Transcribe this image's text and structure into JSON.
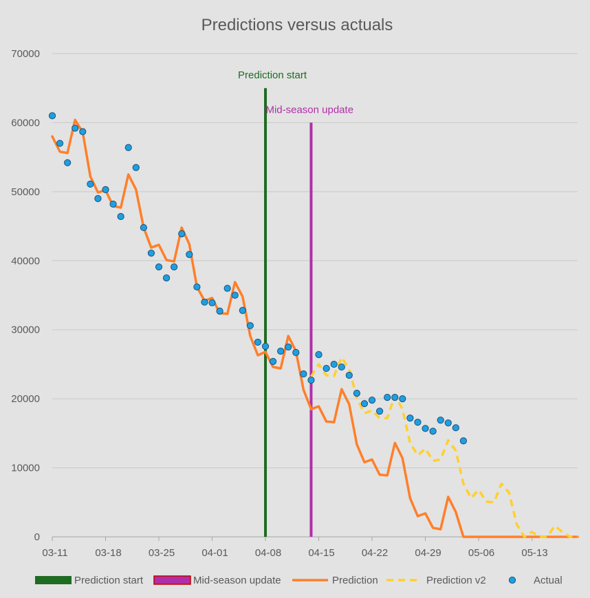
{
  "chart_data": {
    "type": "line",
    "title": "Predictions versus actuals",
    "xlabel": "",
    "ylabel": "",
    "x_axis": {
      "kind": "date",
      "range": [
        "03-11",
        "05-19"
      ],
      "tick_labels": [
        "03-11",
        "03-18",
        "03-25",
        "04-01",
        "04-08",
        "04-15",
        "04-22",
        "04-29",
        "05-06",
        "05-13"
      ]
    },
    "ylim": [
      0,
      70000
    ],
    "yticks": [
      "0",
      "10000",
      "20000",
      "30000",
      "40000",
      "50000",
      "60000",
      "70000"
    ],
    "grid": "horizontal",
    "legend_position": "bottom",
    "colors": {
      "prediction_start": "#1e6b22",
      "mid_season_update": "#b02fa8",
      "prediction": "#ff7f2a",
      "prediction_v2": "#ffd02e",
      "actual_fill": "#1ea0e0",
      "actual_edge": "#1f4e79",
      "grid": "#c9c9c9",
      "axis": "#a6a6a6",
      "text": "#595959"
    },
    "vertical_markers": [
      {
        "name": "Prediction start",
        "x": "04-08",
        "y_top": 65000,
        "color": "#1e6b22"
      },
      {
        "name": "Mid-season update",
        "x": "04-14",
        "y_top": 60000,
        "color": "#b02fa8"
      }
    ],
    "series": [
      {
        "name": "Prediction",
        "style": "solid",
        "color": "#ff7f2a",
        "points": [
          [
            "03-11",
            58000
          ],
          [
            "03-12",
            55800
          ],
          [
            "03-13",
            55600
          ],
          [
            "03-14",
            60400
          ],
          [
            "03-15",
            58600
          ],
          [
            "03-16",
            52200
          ],
          [
            "03-17",
            49900
          ],
          [
            "03-18",
            50200
          ],
          [
            "03-19",
            47900
          ],
          [
            "03-20",
            47700
          ],
          [
            "03-21",
            52500
          ],
          [
            "03-22",
            50300
          ],
          [
            "03-23",
            44800
          ],
          [
            "03-24",
            41900
          ],
          [
            "03-25",
            42300
          ],
          [
            "03-26",
            40100
          ],
          [
            "03-27",
            39900
          ],
          [
            "03-28",
            44800
          ],
          [
            "03-29",
            42400
          ],
          [
            "03-30",
            36200
          ],
          [
            "03-31",
            34200
          ],
          [
            "04-01",
            34600
          ],
          [
            "04-02",
            32400
          ],
          [
            "04-03",
            32300
          ],
          [
            "04-04",
            36900
          ],
          [
            "04-05",
            34800
          ],
          [
            "04-06",
            29100
          ],
          [
            "04-07",
            26300
          ],
          [
            "04-08",
            26800
          ],
          [
            "04-09",
            24600
          ],
          [
            "04-10",
            24400
          ],
          [
            "04-11",
            29100
          ],
          [
            "04-12",
            26900
          ],
          [
            "04-13",
            21300
          ],
          [
            "04-14",
            18500
          ],
          [
            "04-15",
            18900
          ],
          [
            "04-16",
            16700
          ],
          [
            "04-17",
            16600
          ],
          [
            "04-18",
            21400
          ],
          [
            "04-19",
            19200
          ],
          [
            "04-20",
            13400
          ],
          [
            "04-21",
            10800
          ],
          [
            "04-22",
            11200
          ],
          [
            "04-23",
            9000
          ],
          [
            "04-24",
            8900
          ],
          [
            "04-25",
            13600
          ],
          [
            "04-26",
            11400
          ],
          [
            "04-27",
            5600
          ],
          [
            "04-28",
            3000
          ],
          [
            "04-29",
            3400
          ],
          [
            "04-30",
            1300
          ],
          [
            "05-01",
            1100
          ],
          [
            "05-02",
            5800
          ],
          [
            "05-03",
            3600
          ],
          [
            "05-04",
            0
          ],
          [
            "05-05",
            0
          ],
          [
            "05-06",
            0
          ],
          [
            "05-07",
            0
          ],
          [
            "05-08",
            0
          ],
          [
            "05-09",
            0
          ],
          [
            "05-10",
            0
          ],
          [
            "05-11",
            0
          ],
          [
            "05-12",
            0
          ],
          [
            "05-13",
            0
          ],
          [
            "05-14",
            0
          ],
          [
            "05-15",
            0
          ],
          [
            "05-16",
            0
          ],
          [
            "05-17",
            0
          ],
          [
            "05-18",
            0
          ],
          [
            "05-19",
            0
          ]
        ]
      },
      {
        "name": "Prediction v2",
        "style": "dashed",
        "color": "#ffd02e",
        "points": [
          [
            "04-14",
            23200
          ],
          [
            "04-15",
            25000
          ],
          [
            "04-16",
            23400
          ],
          [
            "04-17",
            23300
          ],
          [
            "04-18",
            26000
          ],
          [
            "04-19",
            24300
          ],
          [
            "04-20",
            20100
          ],
          [
            "04-21",
            17900
          ],
          [
            "04-22",
            18300
          ],
          [
            "04-23",
            17200
          ],
          [
            "04-24",
            17200
          ],
          [
            "04-25",
            20500
          ],
          [
            "04-26",
            18500
          ],
          [
            "04-27",
            13600
          ],
          [
            "04-28",
            11800
          ],
          [
            "04-29",
            12800
          ],
          [
            "04-30",
            11000
          ],
          [
            "05-01",
            11200
          ],
          [
            "05-02",
            14000
          ],
          [
            "05-03",
            12500
          ],
          [
            "05-04",
            7700
          ],
          [
            "05-05",
            5600
          ],
          [
            "05-06",
            6800
          ],
          [
            "05-07",
            5100
          ],
          [
            "05-08",
            5000
          ],
          [
            "05-09",
            7700
          ],
          [
            "05-10",
            6400
          ],
          [
            "05-11",
            1800
          ],
          [
            "05-12",
            0
          ],
          [
            "05-13",
            700
          ],
          [
            "05-14",
            0
          ],
          [
            "05-15",
            0
          ],
          [
            "05-16",
            1600
          ],
          [
            "05-17",
            700
          ],
          [
            "05-18",
            0
          ],
          [
            "05-19",
            0
          ]
        ]
      },
      {
        "name": "Actual",
        "style": "markers",
        "color": "#1ea0e0",
        "points": [
          [
            "03-11",
            61000
          ],
          [
            "03-12",
            57000
          ],
          [
            "03-13",
            54200
          ],
          [
            "03-14",
            59200
          ],
          [
            "03-15",
            58700
          ],
          [
            "03-16",
            51100
          ],
          [
            "03-17",
            49000
          ],
          [
            "03-18",
            50300
          ],
          [
            "03-19",
            48200
          ],
          [
            "03-20",
            46400
          ],
          [
            "03-21",
            56400
          ],
          [
            "03-22",
            53500
          ],
          [
            "03-23",
            44800
          ],
          [
            "03-24",
            41100
          ],
          [
            "03-25",
            39100
          ],
          [
            "03-26",
            37500
          ],
          [
            "03-27",
            39100
          ],
          [
            "03-28",
            43900
          ],
          [
            "03-29",
            40900
          ],
          [
            "03-30",
            36200
          ],
          [
            "03-31",
            34000
          ],
          [
            "04-01",
            33900
          ],
          [
            "04-02",
            32700
          ],
          [
            "04-03",
            36000
          ],
          [
            "04-04",
            35000
          ],
          [
            "04-05",
            32800
          ],
          [
            "04-06",
            30600
          ],
          [
            "04-07",
            28200
          ],
          [
            "04-08",
            27600
          ],
          [
            "04-09",
            25400
          ],
          [
            "04-10",
            26900
          ],
          [
            "04-11",
            27500
          ],
          [
            "04-12",
            26700
          ],
          [
            "04-13",
            23600
          ],
          [
            "04-14",
            22700
          ],
          [
            "04-15",
            26400
          ],
          [
            "04-16",
            24400
          ],
          [
            "04-17",
            25000
          ],
          [
            "04-18",
            24600
          ],
          [
            "04-19",
            23400
          ],
          [
            "04-20",
            20800
          ],
          [
            "04-21",
            19300
          ],
          [
            "04-22",
            19800
          ],
          [
            "04-23",
            18200
          ],
          [
            "04-24",
            20200
          ],
          [
            "04-25",
            20200
          ],
          [
            "04-26",
            20000
          ],
          [
            "04-27",
            17200
          ],
          [
            "04-28",
            16600
          ],
          [
            "04-29",
            15700
          ],
          [
            "04-30",
            15300
          ],
          [
            "05-01",
            16900
          ],
          [
            "05-02",
            16500
          ],
          [
            "05-03",
            15800
          ],
          [
            "05-04",
            13900
          ]
        ]
      }
    ],
    "legend": [
      {
        "label": "Prediction start",
        "kind": "bar",
        "color": "#1e6b22"
      },
      {
        "label": "Mid-season update",
        "kind": "bar",
        "color": "#b02fa8",
        "edge": "#c00000"
      },
      {
        "label": "Prediction",
        "kind": "line",
        "color": "#ff7f2a"
      },
      {
        "label": "Prediction v2",
        "kind": "dash",
        "color": "#ffd02e"
      },
      {
        "label": "Actual",
        "kind": "marker",
        "color": "#1ea0e0"
      }
    ]
  }
}
